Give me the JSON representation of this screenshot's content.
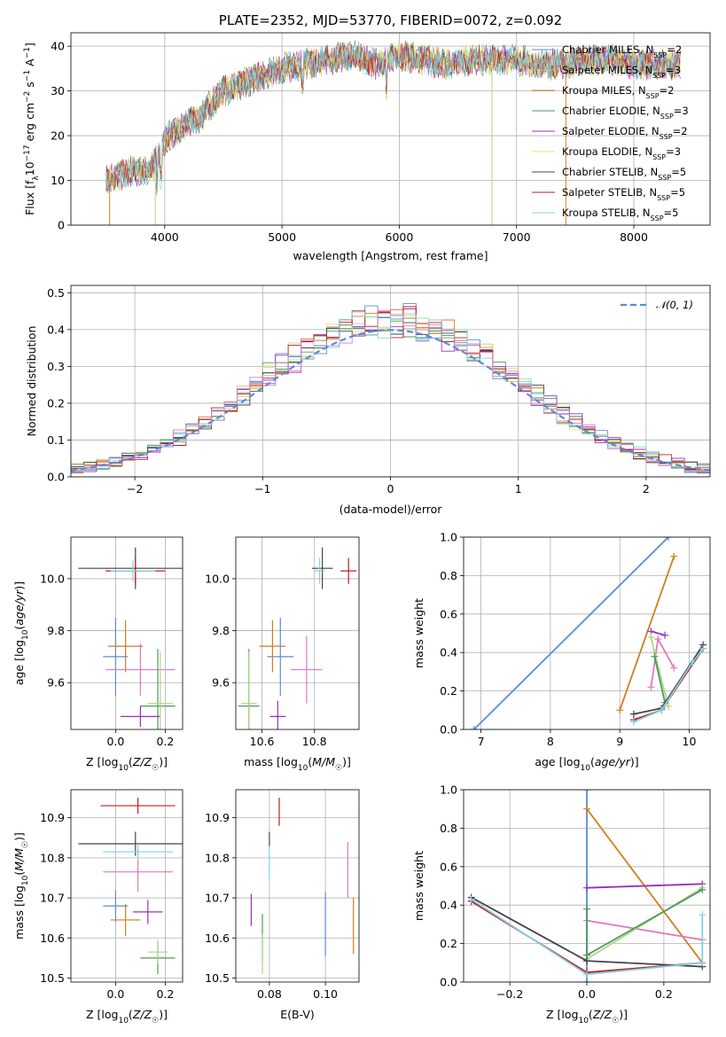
{
  "chart_data": [
    {
      "id": "spectrum",
      "type": "line",
      "title": "PLATE=2352, MJD=53770, FIBERID=0072, z=0.092",
      "xlabel": "wavelength [Angstrom, rest frame]",
      "ylabel": "Flux [f_λ10^-17 erg cm^-2 s^-1 A^-1]",
      "xlim": [
        3200,
        8650
      ],
      "ylim": [
        0,
        43
      ],
      "xticks": [
        4000,
        5000,
        6000,
        7000,
        8000
      ],
      "yticks": [
        0,
        10,
        20,
        30,
        40
      ],
      "legend_position": "upper right",
      "series": [
        {
          "name": "Chabrier MILES, N_SSP=2",
          "color": "#5b8bd6"
        },
        {
          "name": "Salpeter MILES, N_SSP=3",
          "color": "#b0d58a"
        },
        {
          "name": "Kroupa MILES, N_SSP=2",
          "color": "#d17e1c"
        },
        {
          "name": "Chabrier ELODIE, N_SSP=3",
          "color": "#4a9a5a"
        },
        {
          "name": "Salpeter ELODIE, N_SSP=2",
          "color": "#9a2fbf"
        },
        {
          "name": "Kroupa ELODIE, N_SSP=3",
          "color": "#e8e070"
        },
        {
          "name": "Chabrier STELIB, N_SSP=5",
          "color": "#444444"
        },
        {
          "name": "Salpeter STELIB, N_SSP=5",
          "color": "#c21c1c"
        },
        {
          "name": "Kroupa STELIB, N_SSP=5",
          "color": "#7fd3e6"
        }
      ],
      "continuum": {
        "x": [
          3500,
          3600,
          3700,
          3800,
          3900,
          4000,
          4100,
          4200,
          4300,
          4400,
          4500,
          4600,
          4700,
          4800,
          4900,
          5000,
          5200,
          5400,
          5600,
          5800,
          6000,
          6200,
          6400,
          6600,
          6800,
          7000,
          7200,
          7400,
          7600,
          7800,
          8000,
          8200,
          8400
        ],
        "y": [
          10,
          11,
          12,
          12,
          13,
          19,
          21,
          23,
          24,
          27,
          30,
          31,
          32,
          33,
          34,
          35,
          36,
          37,
          38,
          36,
          38,
          37,
          36,
          37,
          37,
          37,
          36,
          36,
          37,
          37,
          36,
          36,
          36
        ]
      }
    },
    {
      "id": "residuals",
      "type": "line",
      "xlabel": "(data-model)/error",
      "ylabel": "Normed distribution",
      "xlim": [
        -2.5,
        2.5
      ],
      "ylim": [
        0,
        0.52
      ],
      "xticks": [
        -2,
        -1,
        0,
        1,
        2
      ],
      "xtick_labels": [
        "−2",
        "−1",
        "0",
        "1",
        "2"
      ],
      "yticks": [
        0.0,
        0.1,
        0.2,
        0.3,
        0.4,
        0.5
      ],
      "ytick_labels": [
        "0.0",
        "0.1",
        "0.2",
        "0.3",
        "0.4",
        "0.5"
      ],
      "grid": true,
      "legend": "𝒩(0, 1)",
      "legend_position": "upper right",
      "normal_curve": {
        "mean": 0,
        "sigma": 1,
        "color": "#5b8bd6"
      },
      "histograms": "one step histogram per model; colors as in spectrum legend"
    },
    {
      "id": "age_vs_Z",
      "type": "scatter",
      "xlabel": "Z [log10(Z/Z☉)]",
      "ylabel": "age  [log10(age/yr)]",
      "xlim": [
        -0.18,
        0.27
      ],
      "ylim": [
        9.42,
        10.16
      ],
      "xticks": [
        0.0,
        0.2
      ],
      "xtick_labels": [
        "0.0",
        "0.2"
      ],
      "yticks": [
        9.6,
        9.8,
        10.0
      ],
      "ytick_labels": [
        "9.6",
        "9.8",
        "10.0"
      ],
      "points": [
        {
          "x": 0.0,
          "y": 9.7,
          "xerr": 0.05,
          "yerr": 0.15,
          "color": "#5b8bd6"
        },
        {
          "x": 0.04,
          "y": 9.74,
          "xerr": 0.07,
          "yerr": 0.1,
          "color": "#d17e1c"
        },
        {
          "x": 0.1,
          "y": 9.65,
          "xerr": 0.14,
          "yerr": 0.1,
          "color": "#e377c2"
        },
        {
          "x": 0.17,
          "y": 9.51,
          "xerr": 0.07,
          "yerr": 0.22,
          "color": "#4a9a5a"
        },
        {
          "x": 0.1,
          "y": 9.47,
          "xerr": 0.08,
          "yerr": 0.04,
          "color": "#9a2fbf"
        },
        {
          "x": 0.18,
          "y": 9.52,
          "xerr": 0.05,
          "yerr": 0.2,
          "color": "#b0d58a"
        },
        {
          "x": 0.08,
          "y": 10.04,
          "xerr": 0.23,
          "yerr": 0.08,
          "color": "#444444"
        },
        {
          "x": 0.08,
          "y": 10.03,
          "xerr": 0.12,
          "yerr": 0.05,
          "color": "#c21c1c"
        },
        {
          "x": 0.07,
          "y": 10.03,
          "xerr": 0.09,
          "yerr": 0.04,
          "color": "#7fd3e6"
        }
      ]
    },
    {
      "id": "age_vs_mass",
      "type": "scatter",
      "xlabel": "mass [log10(M/M☉)]",
      "xlim": [
        10.5,
        10.97
      ],
      "ylim": [
        9.42,
        10.16
      ],
      "xticks": [
        10.6,
        10.8
      ],
      "xtick_labels": [
        "10.6",
        "10.8"
      ],
      "yticks": [
        9.6,
        9.8,
        10.0
      ],
      "ytick_labels": [
        "9.6",
        "9.8",
        "10.0"
      ],
      "points": [
        {
          "x": 10.67,
          "y": 9.7,
          "xerr": 0.05,
          "yerr": 0.15,
          "color": "#5b8bd6"
        },
        {
          "x": 10.64,
          "y": 9.74,
          "xerr": 0.05,
          "yerr": 0.1,
          "color": "#d17e1c"
        },
        {
          "x": 10.77,
          "y": 9.65,
          "xerr": 0.06,
          "yerr": 0.13,
          "color": "#e377c2"
        },
        {
          "x": 10.55,
          "y": 9.51,
          "xerr": 0.04,
          "yerr": 0.22,
          "color": "#4a9a5a"
        },
        {
          "x": 10.66,
          "y": 9.47,
          "xerr": 0.03,
          "yerr": 0.06,
          "color": "#9a2fbf"
        },
        {
          "x": 10.55,
          "y": 9.52,
          "xerr": 0.03,
          "yerr": 0.2,
          "color": "#b0d58a"
        },
        {
          "x": 10.83,
          "y": 10.04,
          "xerr": 0.04,
          "yerr": 0.08,
          "color": "#444444"
        },
        {
          "x": 10.93,
          "y": 10.03,
          "xerr": 0.03,
          "yerr": 0.05,
          "color": "#c21c1c"
        },
        {
          "x": 10.82,
          "y": 10.03,
          "xerr": 0.02,
          "yerr": 0.05,
          "color": "#7fd3e6"
        }
      ]
    },
    {
      "id": "weight_vs_age",
      "type": "line",
      "xlabel": "age  [log10(age/yr)]",
      "ylabel": "mass weight",
      "xlim": [
        6.75,
        10.3
      ],
      "ylim": [
        0,
        1
      ],
      "xticks": [
        7,
        8,
        9,
        10
      ],
      "yticks": [
        0.0,
        0.2,
        0.4,
        0.6,
        0.8,
        1.0
      ],
      "ytick_labels": [
        "0.0",
        "0.2",
        "0.4",
        "0.6",
        "0.8",
        "1.0"
      ],
      "grid": true,
      "series": [
        {
          "color": "#5b8bd6",
          "x": [
            6.9,
            9.7
          ],
          "y": [
            0.0,
            1.0
          ]
        },
        {
          "color": "#d17e1c",
          "x": [
            9.0,
            9.78
          ],
          "y": [
            0.1,
            0.9
          ]
        },
        {
          "color": "#9a2fbf",
          "x": [
            9.45,
            9.65
          ],
          "y": [
            0.51,
            0.49
          ]
        },
        {
          "color": "#e377c2",
          "x": [
            9.45,
            9.55,
            9.78
          ],
          "y": [
            0.22,
            0.47,
            0.32
          ]
        },
        {
          "color": "#b0d58a",
          "x": [
            9.45,
            9.5,
            9.7
          ],
          "y": [
            0.48,
            0.4,
            0.12
          ]
        },
        {
          "color": "#4a9a5a",
          "x": [
            9.5,
            9.65
          ],
          "y": [
            0.38,
            0.14
          ]
        },
        {
          "color": "#444444",
          "x": [
            9.2,
            9.6,
            10.2
          ],
          "y": [
            0.08,
            0.11,
            0.44
          ]
        },
        {
          "color": "#c21c1c",
          "x": [
            9.2,
            9.6,
            10.2
          ],
          "y": [
            0.05,
            0.1,
            0.42
          ]
        },
        {
          "color": "#7fd3e6",
          "x": [
            9.2,
            9.6,
            10.05,
            10.2
          ],
          "y": [
            0.04,
            0.1,
            0.35,
            0.42
          ]
        }
      ]
    },
    {
      "id": "mass_vs_Z",
      "type": "scatter",
      "xlabel": "Z [log10(Z/Z☉)]",
      "ylabel": "mass [log10(M/M☉)]",
      "xlim": [
        -0.18,
        0.27
      ],
      "ylim": [
        10.49,
        10.97
      ],
      "xticks": [
        0.0,
        0.2
      ],
      "xtick_labels": [
        "0.0",
        "0.2"
      ],
      "yticks": [
        10.5,
        10.6,
        10.7,
        10.8,
        10.9
      ],
      "ytick_labels": [
        "10.5",
        "10.6",
        "10.7",
        "10.8",
        "10.9"
      ],
      "points": [
        {
          "x": 0.0,
          "y": 10.68,
          "xerr": 0.05,
          "yerr": 0.04,
          "color": "#5b8bd6"
        },
        {
          "x": 0.04,
          "y": 10.645,
          "xerr": 0.06,
          "yerr": 0.04,
          "color": "#d17e1c"
        },
        {
          "x": 0.09,
          "y": 10.765,
          "xerr": 0.14,
          "yerr": 0.05,
          "color": "#e377c2"
        },
        {
          "x": 0.17,
          "y": 10.55,
          "xerr": 0.07,
          "yerr": 0.04,
          "color": "#4a9a5a"
        },
        {
          "x": 0.13,
          "y": 10.665,
          "xerr": 0.06,
          "yerr": 0.03,
          "color": "#9a2fbf"
        },
        {
          "x": 0.17,
          "y": 10.565,
          "xerr": 0.04,
          "yerr": 0.03,
          "color": "#b0d58a"
        },
        {
          "x": 0.08,
          "y": 10.835,
          "xerr": 0.23,
          "yerr": 0.03,
          "color": "#444444"
        },
        {
          "x": 0.09,
          "y": 10.93,
          "xerr": 0.15,
          "yerr": 0.02,
          "color": "#c21c1c"
        },
        {
          "x": 0.09,
          "y": 10.815,
          "xerr": 0.14,
          "yerr": 0.02,
          "color": "#7fd3e6"
        }
      ]
    },
    {
      "id": "mass_vs_ebv",
      "type": "scatter",
      "xlabel": "E(B-V)",
      "xlim": [
        0.068,
        0.112
      ],
      "ylim": [
        10.49,
        10.97
      ],
      "xticks": [
        0.08,
        0.1
      ],
      "xtick_labels": [
        "0.08",
        "0.10"
      ],
      "yticks": [
        10.5,
        10.6,
        10.7,
        10.8,
        10.9
      ],
      "ytick_labels": [
        "10.5",
        "10.6",
        "10.7",
        "10.8",
        "10.9"
      ],
      "points": [
        {
          "x": 0.1,
          "y": 10.635,
          "yerr": 0.08,
          "color": "#5b8bd6"
        },
        {
          "x": 0.11,
          "y": 10.63,
          "yerr": 0.07,
          "color": "#d17e1c"
        },
        {
          "x": 0.108,
          "y": 10.77,
          "yerr": 0.07,
          "color": "#e377c2"
        },
        {
          "x": 0.0775,
          "y": 10.6,
          "yerr": 0.06,
          "color": "#4a9a5a"
        },
        {
          "x": 0.0735,
          "y": 10.67,
          "yerr": 0.04,
          "color": "#9a2fbf"
        },
        {
          "x": 0.0775,
          "y": 10.56,
          "yerr": 0.05,
          "color": "#b0d58a"
        },
        {
          "x": 0.08,
          "y": 10.845,
          "yerr": 0.02,
          "color": "#444444"
        },
        {
          "x": 0.0835,
          "y": 10.915,
          "yerr": 0.035,
          "color": "#c21c1c"
        },
        {
          "x": 0.08,
          "y": 10.79,
          "yerr": 0.04,
          "color": "#7fd3e6"
        }
      ]
    },
    {
      "id": "weight_vs_Z",
      "type": "line",
      "xlabel": "Z [log10(Z/Z☉)]",
      "ylabel": "mass weight",
      "xlim": [
        -0.32,
        0.32
      ],
      "ylim": [
        0,
        1
      ],
      "xticks": [
        -0.2,
        0.0,
        0.2
      ],
      "xtick_labels": [
        "−0.2",
        "0.0",
        "0.2"
      ],
      "yticks": [
        0.0,
        0.2,
        0.4,
        0.6,
        0.8,
        1.0
      ],
      "ytick_labels": [
        "0.0",
        "0.2",
        "0.4",
        "0.6",
        "0.8",
        "1.0"
      ],
      "grid": true,
      "series": [
        {
          "color": "#5b8bd6",
          "x": [
            0.0,
            0.0
          ],
          "y": [
            0.0,
            1.0
          ]
        },
        {
          "color": "#d17e1c",
          "x": [
            0.0,
            0.3
          ],
          "y": [
            0.9,
            0.1
          ]
        },
        {
          "color": "#9a2fbf",
          "x": [
            0.0,
            0.3
          ],
          "y": [
            0.49,
            0.51
          ]
        },
        {
          "color": "#e377c2",
          "x": [
            0.0,
            0.3
          ],
          "y": [
            0.32,
            0.22
          ]
        },
        {
          "color": "#b0d58a",
          "x": [
            0.0,
            0.3
          ],
          "y": [
            0.12,
            0.49
          ]
        },
        {
          "color": "#4a9a5a",
          "x": [
            0.0,
            0.0,
            0.3
          ],
          "y": [
            0.38,
            0.14,
            0.48
          ]
        },
        {
          "color": "#444444",
          "x": [
            -0.3,
            0.0,
            0.3
          ],
          "y": [
            0.44,
            0.11,
            0.08
          ]
        },
        {
          "color": "#c21c1c",
          "x": [
            -0.3,
            0.0,
            0.3
          ],
          "y": [
            0.42,
            0.05,
            0.1
          ]
        },
        {
          "color": "#7fd3e6",
          "x": [
            -0.3,
            0.0,
            0.3,
            0.3
          ],
          "y": [
            0.43,
            0.04,
            0.1,
            0.35
          ]
        }
      ]
    }
  ]
}
